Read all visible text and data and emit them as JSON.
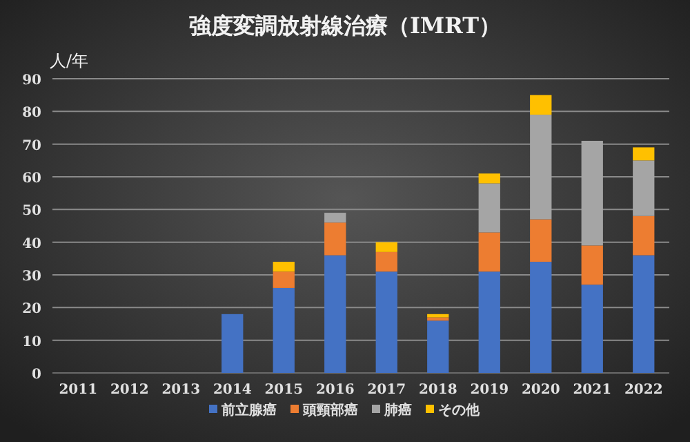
{
  "chart_data": {
    "type": "bar",
    "title": "強度変調放射線治療（IMRT）",
    "ylabel": "人/年",
    "categories": [
      "2011",
      "2012",
      "2013",
      "2014",
      "2015",
      "2016",
      "2017",
      "2018",
      "2019",
      "2020",
      "2021",
      "2022"
    ],
    "stacked": true,
    "ylim": [
      0,
      90
    ],
    "yticks": [
      0,
      10,
      20,
      30,
      40,
      50,
      60,
      70,
      80,
      90
    ],
    "grid": "y",
    "legend": "bottom",
    "series": [
      {
        "name": "前立腺癌",
        "color": "#4472c4",
        "values": [
          0,
          0,
          0,
          18,
          26,
          36,
          31,
          16,
          31,
          34,
          27,
          36
        ]
      },
      {
        "name": "頭頸部癌",
        "color": "#ed7d31",
        "values": [
          0,
          0,
          0,
          0,
          5,
          10,
          6,
          1,
          12,
          13,
          12,
          12
        ]
      },
      {
        "name": "肺癌",
        "color": "#a5a5a5",
        "values": [
          0,
          0,
          0,
          0,
          0,
          3,
          0,
          0,
          15,
          32,
          32,
          17
        ]
      },
      {
        "name": "その他",
        "color": "#ffc000",
        "values": [
          0,
          0,
          0,
          0,
          3,
          0,
          3,
          1,
          3,
          6,
          0,
          4
        ]
      }
    ]
  }
}
